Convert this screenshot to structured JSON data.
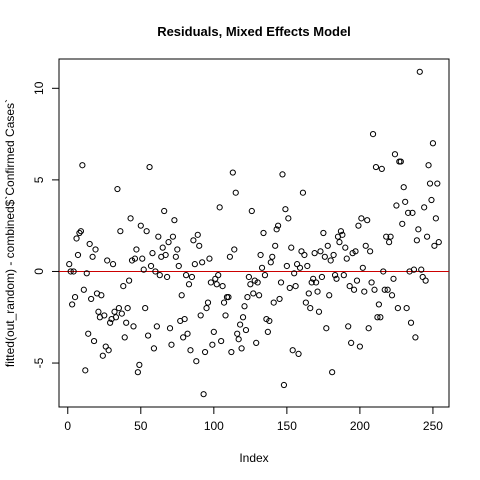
{
  "chart_data": {
    "type": "scatter",
    "title": "Residuals, Mixed Effects Model",
    "xlabel": "Index",
    "ylabel": "fitted(out_random) - combined$`Confirmed Cases`",
    "xlim": [
      -6,
      261
    ],
    "ylim": [
      -7.4,
      11.6
    ],
    "xticks": [
      0,
      50,
      100,
      150,
      200,
      250
    ],
    "yticks": [
      -5,
      0,
      5,
      10
    ],
    "x_tick_labels": [
      "0",
      "50",
      "100",
      "150",
      "200",
      "250"
    ],
    "y_tick_labels": [
      "-5",
      "0",
      "5",
      "10"
    ],
    "reference_line": {
      "y": 0,
      "color": "#cc0000"
    },
    "grid": false,
    "point_style": "open-circle",
    "x": [
      1,
      2,
      3,
      4,
      5,
      6,
      7,
      8,
      9,
      10,
      11,
      12,
      13,
      14,
      15,
      16,
      17,
      18,
      19,
      20,
      21,
      22,
      23,
      24,
      25,
      26,
      27,
      28,
      29,
      30,
      31,
      32,
      33,
      34,
      35,
      36,
      37,
      38,
      39,
      40,
      41,
      42,
      43,
      44,
      45,
      46,
      47,
      48,
      49,
      50,
      51,
      52,
      53,
      54,
      55,
      56,
      57,
      58,
      59,
      60,
      61,
      62,
      63,
      64,
      65,
      66,
      67,
      68,
      69,
      70,
      71,
      72,
      73,
      74,
      75,
      76,
      77,
      78,
      79,
      80,
      81,
      82,
      83,
      84,
      85,
      86,
      87,
      88,
      89,
      90,
      91,
      92,
      93,
      94,
      95,
      96,
      97,
      98,
      99,
      100,
      101,
      102,
      103,
      104,
      105,
      106,
      107,
      108,
      109,
      110,
      111,
      112,
      113,
      114,
      115,
      116,
      117,
      118,
      119,
      120,
      121,
      122,
      123,
      124,
      125,
      126,
      127,
      128,
      129,
      130,
      131,
      132,
      133,
      134,
      135,
      136,
      137,
      138,
      139,
      140,
      141,
      142,
      143,
      144,
      145,
      146,
      147,
      148,
      149,
      150,
      151,
      152,
      153,
      154,
      155,
      156,
      157,
      158,
      159,
      160,
      161,
      162,
      163,
      164,
      165,
      166,
      167,
      168,
      169,
      170,
      171,
      172,
      173,
      174,
      175,
      176,
      177,
      178,
      179,
      180,
      181,
      182,
      183,
      184,
      185,
      186,
      187,
      188,
      189,
      190,
      191,
      192,
      193,
      194,
      195,
      196,
      197,
      198,
      199,
      200,
      201,
      202,
      203,
      204,
      205,
      206,
      207,
      208,
      209,
      210,
      211,
      212,
      213,
      214,
      215,
      216,
      217,
      218,
      219,
      220,
      221,
      222,
      223,
      224,
      225,
      226,
      227,
      228,
      229,
      230,
      231,
      232,
      233,
      234,
      235,
      236,
      237,
      238,
      239,
      240,
      241,
      242,
      243,
      244,
      245,
      246,
      247,
      248,
      249,
      250,
      251,
      252,
      253,
      254
    ],
    "y": [
      0.4,
      0,
      -1.8,
      0,
      -1.4,
      1.8,
      0.9,
      2.1,
      2.2,
      5.8,
      -1.0,
      -5.4,
      -0.1,
      -3.4,
      1.5,
      -1.5,
      0.8,
      -3.8,
      1.2,
      -1.2,
      -2.2,
      -2.5,
      -1.3,
      -4.6,
      -2.4,
      -4.1,
      0.6,
      -4.3,
      -2.8,
      -2.6,
      0.4,
      -2.2,
      -2.5,
      4.5,
      -2.0,
      2.2,
      -2.3,
      -0.8,
      -3.6,
      -2.8,
      -2.0,
      -0.5,
      2.9,
      0.6,
      -3.0,
      0.7,
      1.2,
      -5.5,
      -5.1,
      2.5,
      0.7,
      0.1,
      -2.0,
      2.2,
      -3.5,
      5.7,
      0.3,
      1.0,
      -4.2,
      0,
      -3.0,
      1.9,
      -0.2,
      0.8,
      1.3,
      3.3,
      0.9,
      -0.3,
      1.6,
      -3.1,
      -4.0,
      1.9,
      2.8,
      0.8,
      1.2,
      0.3,
      -2.7,
      -1.3,
      -3.6,
      -2.6,
      -0.2,
      -3.4,
      -0.7,
      -4.3,
      -0.3,
      1.7,
      0.4,
      -4.9,
      2.0,
      1.4,
      -2.4,
      0.5,
      -6.7,
      -4.4,
      -2.0,
      -1.7,
      0.7,
      -0.6,
      -4.0,
      -3.3,
      -0.4,
      -0.7,
      -0.2,
      3.5,
      -3.8,
      -0.8,
      -1.7,
      -2.4,
      -1.4,
      -1.4,
      0.8,
      -4.4,
      5.4,
      1.2,
      4.3,
      -3.4,
      -3.7,
      -2.9,
      -4.2,
      -2.5,
      -1.9,
      -3.2,
      -1.4,
      -0.3,
      -0.7,
      3.3,
      -1.2,
      -0.5,
      -3.9,
      -0.6,
      -1.3,
      0.9,
      0.2,
      2.1,
      -0.2,
      -2.6,
      -3.3,
      -2.7,
      0.5,
      0.8,
      -1.7,
      1.4,
      2.3,
      2.5,
      -1.5,
      -0.6,
      5.3,
      -6.2,
      3.4,
      0.3,
      2.9,
      -0.9,
      1.3,
      -4.3,
      -0.1,
      -0.8,
      0.4,
      -4.5,
      0.2,
      1.1,
      4.3,
      0.9,
      -1.7,
      0.3,
      -1.2,
      -2.0,
      -0.6,
      -0.4,
      1.0,
      -0.6,
      -1.1,
      -2.2,
      1.1,
      -0.3,
      2.1,
      0.8,
      -3.1,
      1.4,
      -1.3,
      0.6,
      -5.5,
      0.9,
      -0.2,
      -0.4,
      1.9,
      1.6,
      2.2,
      2.0,
      -0.2,
      1.3,
      0.7,
      -3.0,
      -0.8,
      -3.9,
      1.0,
      -1.0,
      1.1,
      -0.5,
      2.5,
      -4.1,
      2.9,
      0.2,
      -1.1,
      1.4,
      2.8,
      -3.1,
      1.1,
      -0.6,
      7.5,
      -1.0,
      5.7,
      -2.5,
      -1.8,
      -2.5,
      5.6,
      0,
      -1.0,
      1.9,
      -1.0,
      1.6,
      1.9,
      -1.3,
      -0.4,
      6.4,
      3.6,
      -2.0,
      6.0,
      6.0,
      2.6,
      4.6,
      3.8,
      -2.0,
      3.2,
      0,
      -2.8,
      3.2,
      0.1,
      -3.6,
      1.7,
      2.3,
      10.9,
      0.1,
      -0.3,
      3.5,
      -0.5,
      1.9,
      5.8,
      4.8,
      3.9,
      7.0,
      1.4,
      2.9,
      4.8,
      1.6
    ]
  }
}
